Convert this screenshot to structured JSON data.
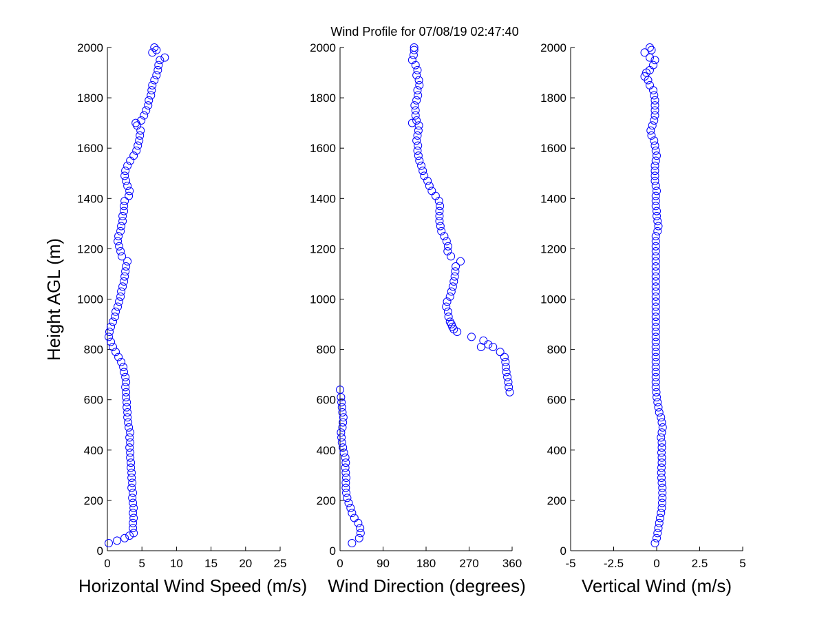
{
  "chart_data": [
    {
      "type": "scatter",
      "title": "Wind Profile for  07/08/19 02:47:40",
      "xlabel": "Horizontal Wind Speed (m/s)",
      "ylabel": "Height AGL (m)",
      "xlim": [
        0,
        25
      ],
      "ylim": [
        0,
        2000
      ],
      "xticks": [
        "0",
        "5",
        "10",
        "15",
        "20",
        "25"
      ],
      "yticks": [
        "0",
        "200",
        "400",
        "600",
        "800",
        "1000",
        "1200",
        "1400",
        "1600",
        "1800",
        "2000"
      ],
      "color": "#0000ff",
      "points": [
        [
          0.2,
          30
        ],
        [
          1.4,
          40
        ],
        [
          2.5,
          50
        ],
        [
          3.2,
          60
        ],
        [
          3.8,
          70
        ],
        [
          3.7,
          90
        ],
        [
          3.7,
          110
        ],
        [
          3.8,
          130
        ],
        [
          3.7,
          150
        ],
        [
          3.8,
          170
        ],
        [
          3.7,
          190
        ],
        [
          3.6,
          210
        ],
        [
          3.7,
          230
        ],
        [
          3.5,
          250
        ],
        [
          3.6,
          270
        ],
        [
          3.5,
          290
        ],
        [
          3.5,
          310
        ],
        [
          3.4,
          330
        ],
        [
          3.4,
          350
        ],
        [
          3.3,
          370
        ],
        [
          3.3,
          390
        ],
        [
          3.2,
          410
        ],
        [
          3.3,
          430
        ],
        [
          3.2,
          450
        ],
        [
          3.3,
          470
        ],
        [
          3.1,
          490
        ],
        [
          3.0,
          510
        ],
        [
          2.9,
          530
        ],
        [
          2.9,
          550
        ],
        [
          2.8,
          570
        ],
        [
          2.8,
          590
        ],
        [
          2.7,
          610
        ],
        [
          2.7,
          630
        ],
        [
          2.6,
          650
        ],
        [
          2.7,
          670
        ],
        [
          2.6,
          690
        ],
        [
          2.4,
          710
        ],
        [
          2.3,
          730
        ],
        [
          2.0,
          750
        ],
        [
          1.6,
          770
        ],
        [
          1.2,
          790
        ],
        [
          0.8,
          810
        ],
        [
          0.5,
          830
        ],
        [
          0.2,
          850
        ],
        [
          0.3,
          870
        ],
        [
          0.5,
          890
        ],
        [
          0.8,
          910
        ],
        [
          1.1,
          930
        ],
        [
          1.2,
          950
        ],
        [
          1.5,
          970
        ],
        [
          1.7,
          990
        ],
        [
          1.9,
          1010
        ],
        [
          2.0,
          1030
        ],
        [
          2.2,
          1050
        ],
        [
          2.4,
          1070
        ],
        [
          2.5,
          1090
        ],
        [
          2.6,
          1110
        ],
        [
          2.7,
          1130
        ],
        [
          2.9,
          1150
        ],
        [
          2.1,
          1170
        ],
        [
          1.9,
          1190
        ],
        [
          1.7,
          1210
        ],
        [
          1.5,
          1230
        ],
        [
          1.6,
          1250
        ],
        [
          1.9,
          1270
        ],
        [
          2.0,
          1290
        ],
        [
          2.2,
          1310
        ],
        [
          2.2,
          1330
        ],
        [
          2.4,
          1350
        ],
        [
          2.4,
          1370
        ],
        [
          2.5,
          1390
        ],
        [
          3.1,
          1410
        ],
        [
          3.2,
          1430
        ],
        [
          2.9,
          1450
        ],
        [
          2.7,
          1470
        ],
        [
          2.5,
          1490
        ],
        [
          2.6,
          1510
        ],
        [
          2.9,
          1530
        ],
        [
          3.3,
          1550
        ],
        [
          3.8,
          1570
        ],
        [
          4.2,
          1590
        ],
        [
          4.4,
          1610
        ],
        [
          4.6,
          1630
        ],
        [
          4.7,
          1650
        ],
        [
          4.8,
          1670
        ],
        [
          4.3,
          1690
        ],
        [
          4.1,
          1700
        ],
        [
          4.9,
          1710
        ],
        [
          5.3,
          1730
        ],
        [
          5.6,
          1750
        ],
        [
          5.9,
          1770
        ],
        [
          6.0,
          1790
        ],
        [
          6.3,
          1810
        ],
        [
          6.4,
          1830
        ],
        [
          6.5,
          1850
        ],
        [
          6.8,
          1870
        ],
        [
          7.1,
          1890
        ],
        [
          7.3,
          1910
        ],
        [
          7.4,
          1930
        ],
        [
          7.6,
          1950
        ],
        [
          8.3,
          1960
        ],
        [
          6.5,
          1980
        ],
        [
          7.1,
          1990
        ],
        [
          6.8,
          2000
        ]
      ]
    },
    {
      "type": "scatter",
      "xlabel": "Wind Direction (degrees)",
      "ylabel": "",
      "xlim": [
        0,
        360
      ],
      "ylim": [
        0,
        2000
      ],
      "xticks": [
        "0",
        "90",
        "180",
        "270",
        "360"
      ],
      "yticks": [
        "0",
        "200",
        "400",
        "600",
        "800",
        "1000",
        "1200",
        "1400",
        "1600",
        "1800",
        "2000"
      ],
      "color": "#0000ff",
      "points": [
        [
          25,
          30
        ],
        [
          40,
          50
        ],
        [
          43,
          70
        ],
        [
          42,
          90
        ],
        [
          38,
          110
        ],
        [
          30,
          130
        ],
        [
          25,
          150
        ],
        [
          22,
          170
        ],
        [
          18,
          190
        ],
        [
          15,
          210
        ],
        [
          13,
          230
        ],
        [
          12,
          250
        ],
        [
          12,
          270
        ],
        [
          13,
          290
        ],
        [
          12,
          310
        ],
        [
          11,
          330
        ],
        [
          12,
          350
        ],
        [
          11,
          370
        ],
        [
          8,
          390
        ],
        [
          6,
          410
        ],
        [
          4,
          430
        ],
        [
          3,
          450
        ],
        [
          2,
          470
        ],
        [
          5,
          490
        ],
        [
          6,
          510
        ],
        [
          7,
          530
        ],
        [
          5,
          550
        ],
        [
          4,
          570
        ],
        [
          3,
          590
        ],
        [
          2,
          610
        ],
        [
          0,
          640
        ],
        [
          355,
          630
        ],
        [
          353,
          650
        ],
        [
          352,
          670
        ],
        [
          350,
          690
        ],
        [
          348,
          710
        ],
        [
          347,
          730
        ],
        [
          346,
          750
        ],
        [
          344,
          770
        ],
        [
          335,
          790
        ],
        [
          320,
          810
        ],
        [
          310,
          820
        ],
        [
          300,
          835
        ],
        [
          295,
          810
        ],
        [
          275,
          850
        ],
        [
          245,
          870
        ],
        [
          238,
          880
        ],
        [
          235,
          890
        ],
        [
          233,
          900
        ],
        [
          230,
          910
        ],
        [
          227,
          930
        ],
        [
          226,
          950
        ],
        [
          222,
          970
        ],
        [
          224,
          990
        ],
        [
          230,
          1010
        ],
        [
          233,
          1030
        ],
        [
          236,
          1050
        ],
        [
          238,
          1070
        ],
        [
          240,
          1090
        ],
        [
          241,
          1110
        ],
        [
          242,
          1130
        ],
        [
          252,
          1150
        ],
        [
          232,
          1170
        ],
        [
          225,
          1190
        ],
        [
          226,
          1210
        ],
        [
          223,
          1230
        ],
        [
          218,
          1250
        ],
        [
          212,
          1270
        ],
        [
          210,
          1290
        ],
        [
          208,
          1310
        ],
        [
          208,
          1330
        ],
        [
          208,
          1350
        ],
        [
          209,
          1370
        ],
        [
          207,
          1390
        ],
        [
          200,
          1410
        ],
        [
          192,
          1430
        ],
        [
          187,
          1450
        ],
        [
          183,
          1470
        ],
        [
          176,
          1490
        ],
        [
          173,
          1510
        ],
        [
          170,
          1530
        ],
        [
          166,
          1550
        ],
        [
          164,
          1570
        ],
        [
          162,
          1590
        ],
        [
          163,
          1610
        ],
        [
          160,
          1630
        ],
        [
          162,
          1650
        ],
        [
          164,
          1670
        ],
        [
          165,
          1690
        ],
        [
          151,
          1700
        ],
        [
          160,
          1710
        ],
        [
          158,
          1730
        ],
        [
          158,
          1750
        ],
        [
          156,
          1770
        ],
        [
          160,
          1790
        ],
        [
          163,
          1810
        ],
        [
          162,
          1830
        ],
        [
          166,
          1850
        ],
        [
          165,
          1870
        ],
        [
          160,
          1890
        ],
        [
          162,
          1910
        ],
        [
          158,
          1930
        ],
        [
          151,
          1950
        ],
        [
          154,
          1970
        ],
        [
          155,
          1990
        ],
        [
          155,
          2000
        ]
      ]
    },
    {
      "type": "scatter",
      "xlabel": "Vertical Wind (m/s)",
      "ylabel": "",
      "xlim": [
        -5,
        5
      ],
      "ylim": [
        0,
        2000
      ],
      "xticks": [
        "-5",
        "-2.5",
        "0",
        "2.5",
        "5"
      ],
      "yticks": [
        "0",
        "200",
        "400",
        "600",
        "800",
        "1000",
        "1200",
        "1400",
        "1600",
        "1800",
        "2000"
      ],
      "color": "#0000ff",
      "points": [
        [
          -0.1,
          30
        ],
        [
          0.0,
          50
        ],
        [
          0.05,
          70
        ],
        [
          0.1,
          90
        ],
        [
          0.15,
          110
        ],
        [
          0.2,
          130
        ],
        [
          0.25,
          150
        ],
        [
          0.3,
          170
        ],
        [
          0.32,
          190
        ],
        [
          0.33,
          210
        ],
        [
          0.33,
          230
        ],
        [
          0.33,
          250
        ],
        [
          0.3,
          270
        ],
        [
          0.28,
          290
        ],
        [
          0.27,
          310
        ],
        [
          0.28,
          330
        ],
        [
          0.3,
          350
        ],
        [
          0.3,
          370
        ],
        [
          0.28,
          390
        ],
        [
          0.3,
          410
        ],
        [
          0.3,
          430
        ],
        [
          0.25,
          450
        ],
        [
          0.3,
          470
        ],
        [
          0.35,
          490
        ],
        [
          0.3,
          510
        ],
        [
          0.25,
          530
        ],
        [
          0.15,
          550
        ],
        [
          0.1,
          570
        ],
        [
          0.05,
          590
        ],
        [
          0.0,
          610
        ],
        [
          -0.02,
          630
        ],
        [
          -0.05,
          650
        ],
        [
          -0.05,
          670
        ],
        [
          -0.05,
          690
        ],
        [
          -0.05,
          710
        ],
        [
          -0.05,
          730
        ],
        [
          -0.05,
          750
        ],
        [
          -0.05,
          770
        ],
        [
          -0.05,
          790
        ],
        [
          -0.05,
          810
        ],
        [
          -0.05,
          830
        ],
        [
          -0.05,
          850
        ],
        [
          -0.05,
          870
        ],
        [
          -0.05,
          890
        ],
        [
          -0.05,
          910
        ],
        [
          -0.05,
          930
        ],
        [
          -0.05,
          950
        ],
        [
          -0.05,
          970
        ],
        [
          -0.05,
          990
        ],
        [
          -0.05,
          1010
        ],
        [
          -0.05,
          1030
        ],
        [
          -0.05,
          1050
        ],
        [
          -0.05,
          1070
        ],
        [
          -0.05,
          1090
        ],
        [
          -0.05,
          1110
        ],
        [
          -0.05,
          1130
        ],
        [
          -0.05,
          1150
        ],
        [
          -0.05,
          1170
        ],
        [
          -0.05,
          1190
        ],
        [
          -0.05,
          1210
        ],
        [
          -0.05,
          1230
        ],
        [
          -0.05,
          1250
        ],
        [
          0.05,
          1270
        ],
        [
          0.1,
          1290
        ],
        [
          0.05,
          1310
        ],
        [
          0.0,
          1330
        ],
        [
          0.0,
          1350
        ],
        [
          -0.05,
          1370
        ],
        [
          -0.05,
          1390
        ],
        [
          -0.05,
          1410
        ],
        [
          0.0,
          1430
        ],
        [
          -0.05,
          1450
        ],
        [
          -0.1,
          1470
        ],
        [
          -0.1,
          1490
        ],
        [
          -0.1,
          1510
        ],
        [
          -0.1,
          1530
        ],
        [
          -0.05,
          1550
        ],
        [
          0.0,
          1570
        ],
        [
          -0.05,
          1590
        ],
        [
          -0.1,
          1610
        ],
        [
          -0.15,
          1630
        ],
        [
          -0.3,
          1650
        ],
        [
          -0.35,
          1670
        ],
        [
          -0.25,
          1690
        ],
        [
          -0.15,
          1710
        ],
        [
          -0.1,
          1730
        ],
        [
          -0.1,
          1750
        ],
        [
          -0.1,
          1770
        ],
        [
          -0.1,
          1790
        ],
        [
          -0.15,
          1810
        ],
        [
          -0.2,
          1830
        ],
        [
          -0.4,
          1850
        ],
        [
          -0.5,
          1870
        ],
        [
          -0.7,
          1885
        ],
        [
          -0.6,
          1900
        ],
        [
          -0.4,
          1910
        ],
        [
          -0.2,
          1930
        ],
        [
          -0.1,
          1950
        ],
        [
          -0.4,
          1960
        ],
        [
          -0.7,
          1980
        ],
        [
          -0.3,
          1990
        ],
        [
          -0.4,
          2000
        ]
      ]
    }
  ]
}
